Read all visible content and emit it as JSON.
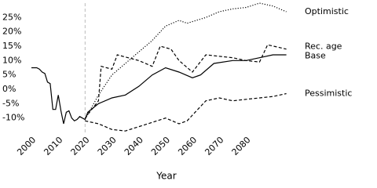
{
  "chart_data": {
    "type": "line",
    "x_label": "Year",
    "xlim": [
      2000,
      2096
    ],
    "ylim": [
      -15,
      30
    ],
    "xticks": [
      2000,
      2010,
      2020,
      2030,
      2040,
      2050,
      2060,
      2070,
      2080
    ],
    "yticks": [
      {
        "value": -10,
        "label": "-10%"
      },
      {
        "value": -5,
        "label": "-5%"
      },
      {
        "value": 0,
        "label": "0%"
      },
      {
        "value": 5,
        "label": "5%"
      },
      {
        "value": 10,
        "label": "10%"
      },
      {
        "value": 15,
        "label": "15%"
      },
      {
        "value": 20,
        "label": "20%"
      },
      {
        "value": 25,
        "label": "25%"
      }
    ],
    "vline": 2020,
    "series": [
      {
        "name": "Optimistic",
        "color": "#000000",
        "dash": "dotted",
        "x": [
          2020,
          2025,
          2030,
          2035,
          2040,
          2045,
          2050,
          2055,
          2058,
          2065,
          2070,
          2075,
          2080,
          2085,
          2090,
          2095
        ],
        "values": [
          -10.5,
          -2,
          5,
          9,
          13,
          17,
          22,
          24,
          23,
          25,
          27,
          28,
          28.5,
          30,
          29,
          27
        ]
      },
      {
        "name": "Rec. age",
        "color": "#000000",
        "dash": "dashed",
        "x": [
          2020,
          2025,
          2026,
          2030,
          2032,
          2040,
          2045,
          2048,
          2052,
          2055,
          2060,
          2065,
          2075,
          2080,
          2085,
          2088,
          2095
        ],
        "values": [
          -10,
          -4,
          8,
          7,
          12,
          10,
          8,
          15,
          14,
          10,
          6,
          12,
          11,
          10,
          9.5,
          15.5,
          14
        ]
      },
      {
        "name": "Base",
        "color": "#000000",
        "dash": "solid",
        "x": [
          2000,
          2002,
          2003,
          2004,
          2005,
          2006,
          2007,
          2008,
          2009,
          2010,
          2011,
          2012,
          2013,
          2014,
          2015,
          2016,
          2017,
          2018,
          2019,
          2020,
          2021,
          2025,
          2030,
          2035,
          2040,
          2045,
          2050,
          2055,
          2060,
          2063,
          2068,
          2075,
          2080,
          2085,
          2090,
          2095
        ],
        "values": [
          7.5,
          7.5,
          7,
          6,
          5.5,
          2.5,
          2,
          -7,
          -7,
          -2,
          -7.5,
          -12,
          -8,
          -7.5,
          -10,
          -11,
          -10.5,
          -9.5,
          -10,
          -10.5,
          -8,
          -5,
          -3,
          -2,
          1,
          5,
          7.5,
          6,
          4,
          5,
          9,
          10,
          10,
          11,
          12,
          12
        ]
      },
      {
        "name": "Pessimistic",
        "color": "#000000",
        "dash": "dashed",
        "x": [
          2020,
          2025,
          2030,
          2035,
          2040,
          2045,
          2050,
          2055,
          2058,
          2060,
          2065,
          2070,
          2075,
          2080,
          2085,
          2090,
          2095
        ],
        "values": [
          -11,
          -12,
          -14,
          -14.5,
          -13,
          -11.5,
          -10,
          -12,
          -11,
          -9,
          -4,
          -3,
          -4,
          -3.5,
          -3,
          -2.5,
          -1.5
        ]
      }
    ]
  }
}
